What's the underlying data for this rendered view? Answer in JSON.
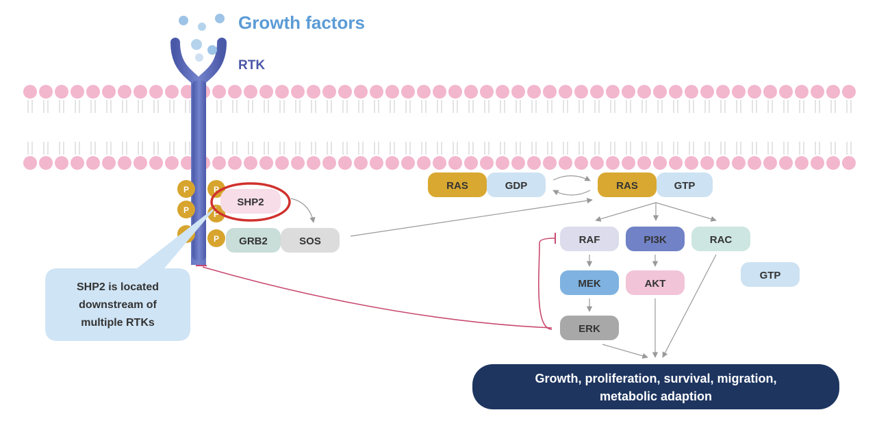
{
  "title": "Growth factors",
  "receptor_label": "RTK",
  "phospho_label": "P",
  "proteins": {
    "shp2": "SHP2",
    "grb2": "GRB2",
    "sos": "SOS",
    "ras_inactive": "RAS",
    "gdp": "GDP",
    "ras_active": "RAS",
    "gtp": "GTP",
    "raf": "RAF",
    "mek": "MEK",
    "erk": "ERK",
    "pi3k": "PI3K",
    "akt": "AKT",
    "rac": "RAC",
    "rac_gtp": "GTP"
  },
  "callout": {
    "line1": "SHP2 is located",
    "line2": "downstream of",
    "line3": "multiple RTKs"
  },
  "outcome": {
    "line1": "Growth, proliferation, survival, migration,",
    "line2": "metabolic adaption"
  },
  "colors": {
    "title": "#5b9bd5",
    "receptor": "#5b6ab8",
    "receptor_label": "#4a56a6",
    "ligand": "#9dc3e6",
    "membrane_head": "#f2b6cd",
    "phospho": "#d7a42e",
    "shp2_box": "#f6dde8",
    "highlight_ring": "#d0312d",
    "grb2_box": "#c9ddd9",
    "sos_box": "#dcdcdc",
    "ras_box": "#d9a830",
    "gdp_gtp_box": "#cde2f2",
    "raf_box": "#dcdcec",
    "mek_box": "#7fb2e0",
    "erk_box": "#a8a8a8",
    "pi3k_box": "#7182c6",
    "akt_box": "#f2c4d8",
    "rac_box": "#cde6e1",
    "callout_box": "#cfe4f5",
    "outcome_box": "#1e3560",
    "inhibition_line": "#c8496f",
    "arrow": "#999999"
  }
}
